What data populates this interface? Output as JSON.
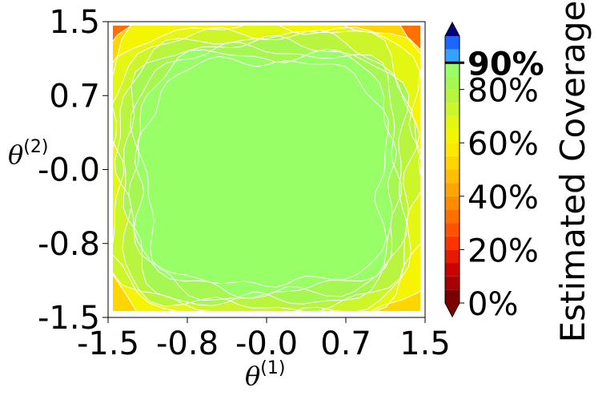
{
  "chart_data": {
    "type": "heatmap",
    "title": "",
    "xlabel": "θ",
    "xlabel_superscript": "(1)",
    "ylabel": "θ",
    "ylabel_superscript": "(2)",
    "xlim": [
      -1.5,
      1.5
    ],
    "ylim": [
      -1.5,
      1.5
    ],
    "xticks": [
      "-1.5",
      "-0.8",
      "-0.0",
      "0.7",
      "1.5"
    ],
    "yticks": [
      "1.5",
      "0.7",
      "-0.0",
      "-0.8",
      "-1.5"
    ],
    "xtick_values": [
      -1.5,
      -0.75,
      0.0,
      0.75,
      1.5
    ],
    "ytick_values": [
      1.5,
      0.75,
      0.0,
      -0.75,
      -1.5
    ],
    "colorbar": {
      "label": "Estimated Coverage",
      "ticks": [
        "0%",
        "20%",
        "40%",
        "60%",
        "80%",
        "90%"
      ],
      "tick_values": [
        0,
        20,
        40,
        60,
        80,
        90
      ],
      "highlight_tick": "90%",
      "levels": [
        0,
        5,
        10,
        15,
        20,
        25,
        30,
        35,
        40,
        45,
        50,
        55,
        60,
        65,
        70,
        75,
        80,
        85,
        90,
        95,
        100
      ],
      "colors": [
        "#7a0000",
        "#a60000",
        "#cc0000",
        "#e61a00",
        "#ff3300",
        "#ff5200",
        "#ff7000",
        "#ff8c00",
        "#ffa500",
        "#ffbe00",
        "#ffd500",
        "#ffe800",
        "#f5f500",
        "#e3f712",
        "#ccf52a",
        "#b9f53e",
        "#a6f752",
        "#99ff66",
        "#33a3ff",
        "#1a66ff"
      ],
      "under_color": "#7a0000",
      "over_color": "#000080"
    },
    "region_levels": [
      0,
      30,
      50,
      60,
      68,
      74,
      78,
      82,
      84,
      86
    ],
    "plateau_value": 87,
    "grid": false,
    "colorscale_name": "jet-like red-yellow-green-blue"
  }
}
